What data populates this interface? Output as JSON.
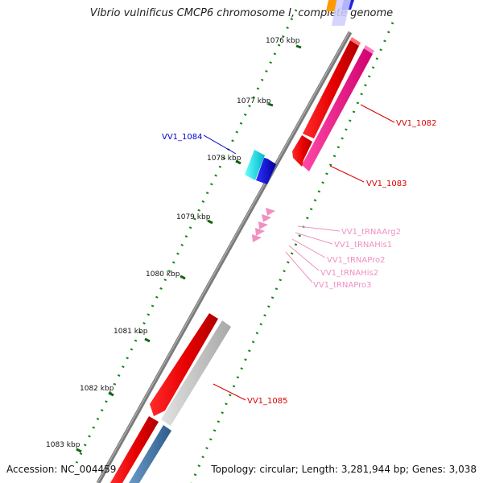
{
  "title": "Vibrio vulnificus CMCP6 chromosome I, complete genome",
  "footer": {
    "accession": "Accession: NC_004459",
    "topology": "Topology: circular; Length: 3,281,944 bp; Genes: 3,038"
  },
  "ticks": [
    "1076 kbp",
    "1077 kbp",
    "1078 kbp",
    "1079 kbp",
    "1080 kbp",
    "1081 kbp",
    "1082 kbp",
    "1083 kbp"
  ],
  "genes": {
    "vv1_1082": "VV1_1082",
    "vv1_1083": "VV1_1083",
    "vv1_1084": "VV1_1084",
    "vv1_1085": "VV1_1085",
    "trna_arg2": "VV1_tRNAArg2",
    "trna_his1": "VV1_tRNAHis1",
    "trna_pro2": "VV1_tRNAPro2",
    "trna_his2": "VV1_tRNAHis2",
    "trna_pro3": "VV1_tRNAPro3"
  },
  "colors": {
    "forward_cds": "#ee0000",
    "reverse_cds": "#ee1188",
    "cyan_cds": "#00dddd",
    "blue_cds": "#0000dd",
    "gray_cds": "#c8c8c8",
    "steel_cds": "#4477aa",
    "trna": "#f090c0",
    "backbone": "#808080",
    "dots": "#118811"
  }
}
